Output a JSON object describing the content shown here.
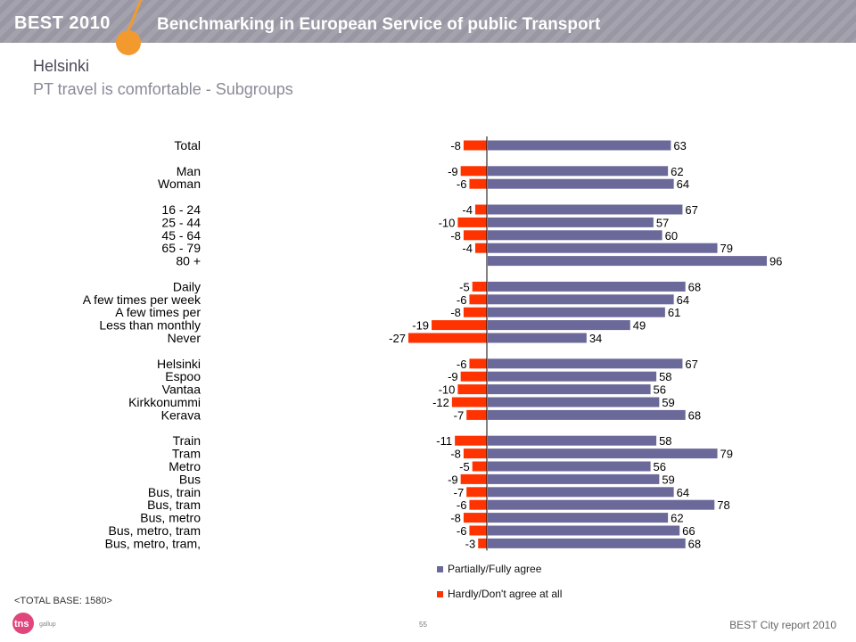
{
  "header": {
    "brand": "BEST 2010",
    "title": "Benchmarking in European Service of public Transport"
  },
  "page": {
    "city": "Helsinki",
    "subtitle": "PT travel is comfortable - Subgroups"
  },
  "footer": {
    "base": "<TOTAL BASE: 1580>",
    "page_number": "55",
    "report": "BEST City report 2010",
    "logo_main": "tns",
    "logo_sub": "gallup"
  },
  "colors": {
    "agree": "#6b6999",
    "disagree": "#ff3300",
    "header_bg": "#9d9ca8",
    "accent": "#f39a2f"
  },
  "legend": {
    "agree": "Partially/Fully agree",
    "disagree": "Hardly/Don't agree at all"
  },
  "chart_data": {
    "type": "bar",
    "orientation": "horizontal-diverging",
    "series": [
      {
        "name": "Partially/Fully agree",
        "key": "agree"
      },
      {
        "name": "Hardly/Don't agree at all",
        "key": "disagree"
      }
    ],
    "groups": [
      {
        "rows": [
          {
            "label": "Total",
            "disagree": -8,
            "agree": 63
          }
        ]
      },
      {
        "rows": [
          {
            "label": "Man",
            "disagree": -9,
            "agree": 62
          },
          {
            "label": "Woman",
            "disagree": -6,
            "agree": 64
          }
        ]
      },
      {
        "rows": [
          {
            "label": "16 - 24",
            "disagree": -4,
            "agree": 67
          },
          {
            "label": "25 - 44",
            "disagree": -10,
            "agree": 57
          },
          {
            "label": "45 - 64",
            "disagree": -8,
            "agree": 60
          },
          {
            "label": "65 - 79",
            "disagree": -4,
            "agree": 79
          },
          {
            "label": "80 +",
            "disagree": null,
            "agree": 96
          }
        ]
      },
      {
        "rows": [
          {
            "label": "Daily",
            "disagree": -5,
            "agree": 68
          },
          {
            "label": "A few times per week",
            "disagree": -6,
            "agree": 64
          },
          {
            "label": "A few times per",
            "disagree": -8,
            "agree": 61
          },
          {
            "label": "Less than monthly",
            "disagree": -19,
            "agree": 49
          },
          {
            "label": "Never",
            "disagree": -27,
            "agree": 34
          }
        ]
      },
      {
        "rows": [
          {
            "label": "Helsinki",
            "disagree": -6,
            "agree": 67
          },
          {
            "label": "Espoo",
            "disagree": -9,
            "agree": 58
          },
          {
            "label": "Vantaa",
            "disagree": -10,
            "agree": 56
          },
          {
            "label": "Kirkkonummi",
            "disagree": -12,
            "agree": 59
          },
          {
            "label": "Kerava",
            "disagree": -7,
            "agree": 68
          }
        ]
      },
      {
        "rows": [
          {
            "label": "Train",
            "disagree": -11,
            "agree": 58
          },
          {
            "label": "Tram",
            "disagree": -8,
            "agree": 79
          },
          {
            "label": "Metro",
            "disagree": -5,
            "agree": 56
          },
          {
            "label": "Bus",
            "disagree": -9,
            "agree": 59
          },
          {
            "label": "Bus, train",
            "disagree": -7,
            "agree": 64
          },
          {
            "label": "Bus, tram",
            "disagree": -6,
            "agree": 78
          },
          {
            "label": "Bus, metro",
            "disagree": -8,
            "agree": 62
          },
          {
            "label": "Bus, metro, tram",
            "disagree": -6,
            "agree": 66
          },
          {
            "label": "Bus, metro, tram,",
            "disagree": -3,
            "agree": 68
          }
        ]
      }
    ]
  }
}
